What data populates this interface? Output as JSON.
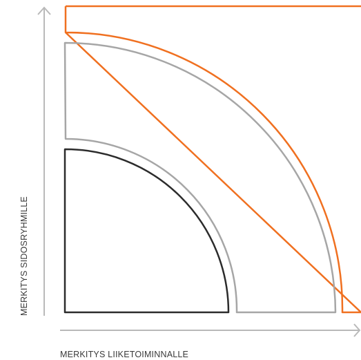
{
  "diagram": {
    "x_axis_label": "MERKITYS LIIKETOIMINNALLE",
    "y_axis_label": "MERKITYS SIDOSRYHMILLE",
    "colors": {
      "axis": "#b9b9b9",
      "label_text": "#3a3a3a",
      "inner_shape": "#2b2b2b",
      "middle_shape": "#a6a6a6",
      "outer_shape": "#f07020"
    }
  }
}
